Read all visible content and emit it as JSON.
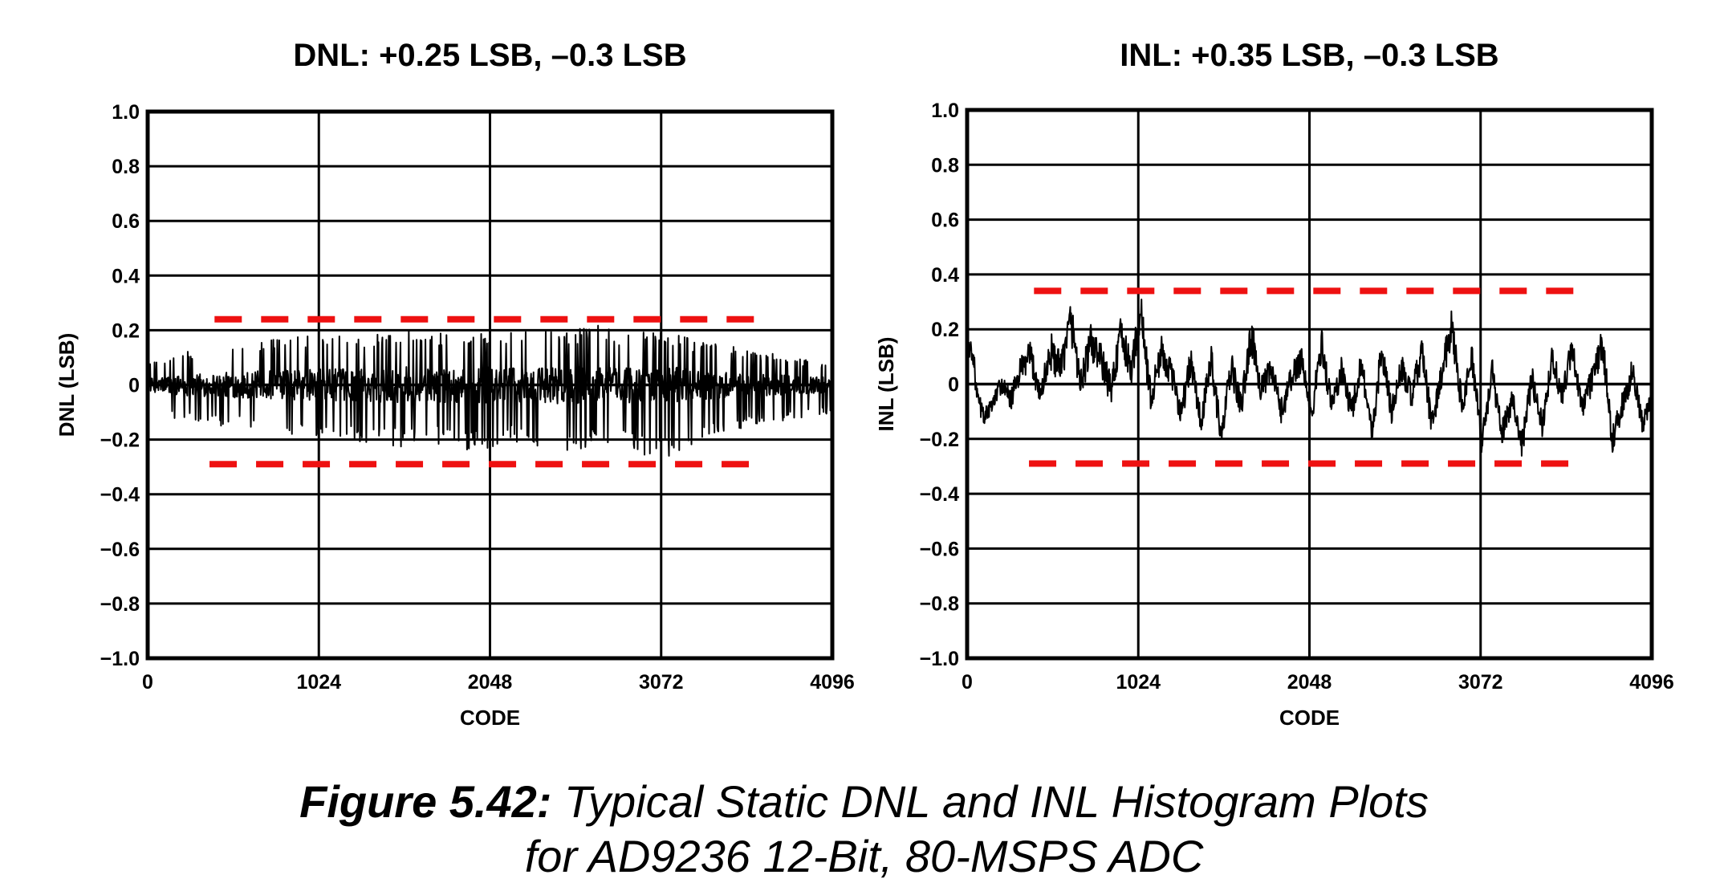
{
  "caption": {
    "label": "Figure 5.42:",
    "line1": "Typical Static DNL and INL Histogram Plots",
    "line2": "for AD9236 12-Bit, 80-MSPS ADC"
  },
  "colors": {
    "trace": "#000000",
    "limit": "#ee1111",
    "grid": "#000000"
  },
  "chart_data": [
    {
      "type": "line",
      "id": "dnl",
      "title": "DNL: +0.25 LSB, –0.3 LSB",
      "xlabel": "CODE",
      "ylabel": "DNL (LSB)",
      "xlim": [
        0,
        4096
      ],
      "ylim": [
        -1.0,
        1.0
      ],
      "xticks": [
        0,
        1024,
        2048,
        3072,
        4096
      ],
      "xtick_labels": [
        "0",
        "1024",
        "2048",
        "3072",
        "4096"
      ],
      "yticks": [
        1.0,
        0.8,
        0.6,
        0.4,
        0.2,
        0,
        -0.2,
        -0.4,
        -0.6,
        -0.8,
        -1.0
      ],
      "ytick_labels": [
        "1.0",
        "0.8",
        "0.6",
        "0.4",
        "0.2",
        "0",
        "−0.2",
        "−0.4",
        "−0.6",
        "−0.8",
        "−1.0"
      ],
      "grid": true,
      "limits": [
        {
          "name": "+0.25 LSB",
          "y": 0.24,
          "x_start": 400,
          "x_end": 3700,
          "style": "dashed",
          "color": "#ee1111"
        },
        {
          "name": "−0.3 LSB",
          "y": -0.29,
          "x_start": 370,
          "x_end": 3660,
          "style": "dashed",
          "color": "#ee1111"
        }
      ],
      "series": [
        {
          "x": [
            0,
            128,
            256,
            384,
            512,
            640,
            768,
            896,
            1024,
            1152,
            1280,
            1408,
            1536,
            1664,
            1792,
            1920,
            2048,
            2176,
            2304,
            2432,
            2560,
            2688,
            2816,
            2944,
            3072,
            3200,
            3328,
            3456,
            3584,
            3712,
            3840,
            3968,
            4096
          ],
          "y_max": [
            0.08,
            0.1,
            0.13,
            0.14,
            0.15,
            0.17,
            0.18,
            0.19,
            0.18,
            0.2,
            0.19,
            0.2,
            0.22,
            0.19,
            0.21,
            0.2,
            0.21,
            0.2,
            0.19,
            0.2,
            0.21,
            0.22,
            0.2,
            0.21,
            0.2,
            0.18,
            0.16,
            0.15,
            0.13,
            0.12,
            0.1,
            0.09,
            0.08
          ],
          "y_min": [
            -0.08,
            -0.12,
            -0.14,
            -0.15,
            -0.16,
            -0.17,
            -0.18,
            -0.19,
            -0.2,
            -0.19,
            -0.21,
            -0.22,
            -0.23,
            -0.21,
            -0.22,
            -0.24,
            -0.23,
            -0.21,
            -0.22,
            -0.27,
            -0.24,
            -0.22,
            -0.23,
            -0.25,
            -0.29,
            -0.24,
            -0.19,
            -0.17,
            -0.16,
            -0.14,
            -0.13,
            -0.12,
            -0.1
          ]
        }
      ]
    },
    {
      "type": "line",
      "id": "inl",
      "title": "INL: +0.35 LSB, –0.3 LSB",
      "xlabel": "CODE",
      "ylabel": "INL (LSB)",
      "xlim": [
        0,
        4096
      ],
      "ylim": [
        -1.0,
        1.0
      ],
      "xticks": [
        0,
        1024,
        2048,
        3072,
        4096
      ],
      "xtick_labels": [
        "0",
        "1024",
        "2048",
        "3072",
        "4096"
      ],
      "yticks": [
        1.0,
        0.8,
        0.6,
        0.4,
        0.2,
        0,
        -0.2,
        -0.4,
        -0.6,
        -0.8,
        -1.0
      ],
      "ytick_labels": [
        "1.0",
        "0.8",
        "0.6",
        "0.4",
        "0.2",
        "0",
        "−0.2",
        "−0.4",
        "−0.6",
        "−0.8",
        "−1.0"
      ],
      "grid": true,
      "limits": [
        {
          "name": "+0.35 LSB",
          "y": 0.34,
          "x_start": 400,
          "x_end": 3700,
          "style": "dashed",
          "color": "#ee1111"
        },
        {
          "name": "−0.3 LSB",
          "y": -0.29,
          "x_start": 370,
          "x_end": 3660,
          "style": "dashed",
          "color": "#ee1111"
        }
      ],
      "series": [
        {
          "x": [
            0,
            30,
            60,
            100,
            150,
            200,
            260,
            320,
            380,
            440,
            500,
            560,
            620,
            680,
            740,
            800,
            860,
            920,
            980,
            1040,
            1100,
            1160,
            1220,
            1280,
            1340,
            1400,
            1460,
            1520,
            1580,
            1640,
            1700,
            1760,
            1820,
            1880,
            1940,
            2000,
            2060,
            2120,
            2180,
            2240,
            2300,
            2360,
            2420,
            2480,
            2540,
            2600,
            2660,
            2720,
            2780,
            2840,
            2900,
            2960,
            3020,
            3080,
            3140,
            3200,
            3260,
            3320,
            3380,
            3440,
            3500,
            3560,
            3620,
            3680,
            3740,
            3800,
            3860,
            3920,
            3980,
            4040,
            4096
          ],
          "y": [
            0.1,
            0.14,
            -0.05,
            -0.12,
            -0.08,
            0.0,
            -0.06,
            0.05,
            0.1,
            -0.04,
            0.12,
            0.05,
            0.24,
            0.0,
            0.15,
            0.09,
            -0.02,
            0.18,
            0.05,
            0.26,
            -0.06,
            0.12,
            0.04,
            -0.1,
            0.08,
            -0.15,
            0.1,
            -0.2,
            0.06,
            -0.08,
            0.18,
            -0.02,
            0.05,
            -0.1,
            0.02,
            0.1,
            -0.12,
            0.15,
            -0.08,
            0.05,
            -0.1,
            0.08,
            -0.18,
            0.12,
            -0.1,
            0.06,
            -0.05,
            0.12,
            -0.15,
            0.04,
            0.22,
            -0.08,
            0.1,
            -0.22,
            0.05,
            -0.18,
            -0.05,
            -0.22,
            0.02,
            -0.15,
            0.1,
            -0.05,
            0.14,
            -0.1,
            0.02,
            0.15,
            -0.2,
            -0.08,
            0.05,
            -0.15,
            -0.05
          ],
          "jitter": [
            0.04,
            0.05,
            0.04,
            0.03,
            0.03,
            0.04,
            0.04,
            0.05,
            0.06,
            0.05,
            0.07,
            0.06,
            0.08,
            0.06,
            0.07,
            0.06,
            0.06,
            0.07,
            0.06,
            0.07,
            0.06,
            0.06,
            0.05,
            0.05,
            0.06,
            0.05,
            0.06,
            0.05,
            0.06,
            0.05,
            0.07,
            0.05,
            0.05,
            0.05,
            0.05,
            0.06,
            0.05,
            0.06,
            0.05,
            0.05,
            0.05,
            0.05,
            0.05,
            0.06,
            0.05,
            0.05,
            0.05,
            0.06,
            0.05,
            0.05,
            0.07,
            0.05,
            0.05,
            0.05,
            0.05,
            0.05,
            0.05,
            0.05,
            0.05,
            0.05,
            0.05,
            0.05,
            0.05,
            0.05,
            0.05,
            0.06,
            0.05,
            0.05,
            0.05,
            0.04,
            0.04
          ]
        }
      ]
    }
  ]
}
